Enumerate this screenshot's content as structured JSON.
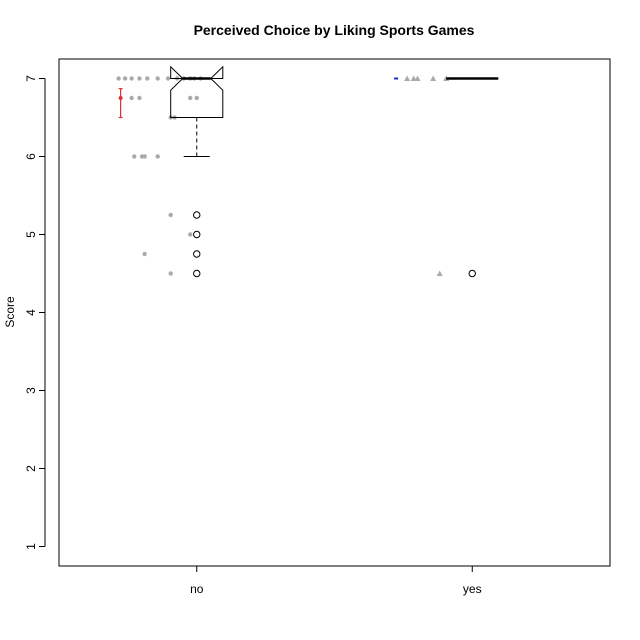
{
  "chart_data": {
    "type": "boxplot",
    "title": "Perceived Choice by Liking Sports Games",
    "xlabel": "",
    "ylabel": "Score",
    "ylim": [
      0.75,
      7.25
    ],
    "y_ticks": [
      "1",
      "2",
      "3",
      "4",
      "5",
      "6",
      "7"
    ],
    "grid": false,
    "legend": "none",
    "groups": [
      {
        "category": "no",
        "jitter_color": "#aaaaaa",
        "mean_marker_color": "#e03030",
        "jitter_points": [
          {
            "x": -0.6,
            "y": 7.0
          },
          {
            "x": -0.55,
            "y": 7.0
          },
          {
            "x": -0.5,
            "y": 7.0
          },
          {
            "x": -0.44,
            "y": 7.0
          },
          {
            "x": -0.38,
            "y": 7.0
          },
          {
            "x": -0.3,
            "y": 7.0
          },
          {
            "x": -0.22,
            "y": 7.0
          },
          {
            "x": -0.15,
            "y": 7.0
          },
          {
            "x": -0.1,
            "y": 7.0
          },
          {
            "x": -0.05,
            "y": 7.0
          },
          {
            "x": -0.02,
            "y": 7.0
          },
          {
            "x": 0.03,
            "y": 7.0
          },
          {
            "x": -0.5,
            "y": 6.75
          },
          {
            "x": -0.44,
            "y": 6.75
          },
          {
            "x": -0.05,
            "y": 6.75
          },
          {
            "x": 0.0,
            "y": 6.75
          },
          {
            "x": -0.2,
            "y": 6.5
          },
          {
            "x": -0.17,
            "y": 6.5
          },
          {
            "x": -0.48,
            "y": 6.0
          },
          {
            "x": -0.42,
            "y": 6.0
          },
          {
            "x": -0.4,
            "y": 6.0
          },
          {
            "x": -0.3,
            "y": 6.0
          },
          {
            "x": -0.2,
            "y": 5.25
          },
          {
            "x": -0.05,
            "y": 5.0
          },
          {
            "x": -0.4,
            "y": 4.75
          },
          {
            "x": -0.2,
            "y": 4.5
          }
        ],
        "mean": 6.75,
        "error_low": 6.5,
        "error_high": 6.87,
        "box": {
          "q1": 6.5,
          "median": 7.0,
          "q3": 7.0,
          "notch_low": 6.85,
          "notch_high": 7.15,
          "whisker_low": 6.0,
          "whisker_high": 7.0,
          "outliers": [
            5.25,
            5.0,
            4.75,
            4.5
          ]
        }
      },
      {
        "category": "yes",
        "jitter_color": "#aaaaaa",
        "mean_marker_color": "#1a2fb0",
        "jitter_points": [
          {
            "x": -0.5,
            "y": 7.0
          },
          {
            "x": -0.45,
            "y": 7.0
          },
          {
            "x": -0.42,
            "y": 7.0
          },
          {
            "x": -0.3,
            "y": 7.0
          },
          {
            "x": -0.2,
            "y": 7.0
          },
          {
            "x": -0.25,
            "y": 4.5
          }
        ],
        "mean": 7.0,
        "error_low": 7.0,
        "error_high": 7.0,
        "box": {
          "q1": 7.0,
          "median": 7.0,
          "q3": 7.0,
          "notch_low": 7.0,
          "notch_high": 7.0,
          "whisker_low": 7.0,
          "whisker_high": 7.0,
          "outliers": [
            4.5
          ]
        }
      }
    ]
  }
}
